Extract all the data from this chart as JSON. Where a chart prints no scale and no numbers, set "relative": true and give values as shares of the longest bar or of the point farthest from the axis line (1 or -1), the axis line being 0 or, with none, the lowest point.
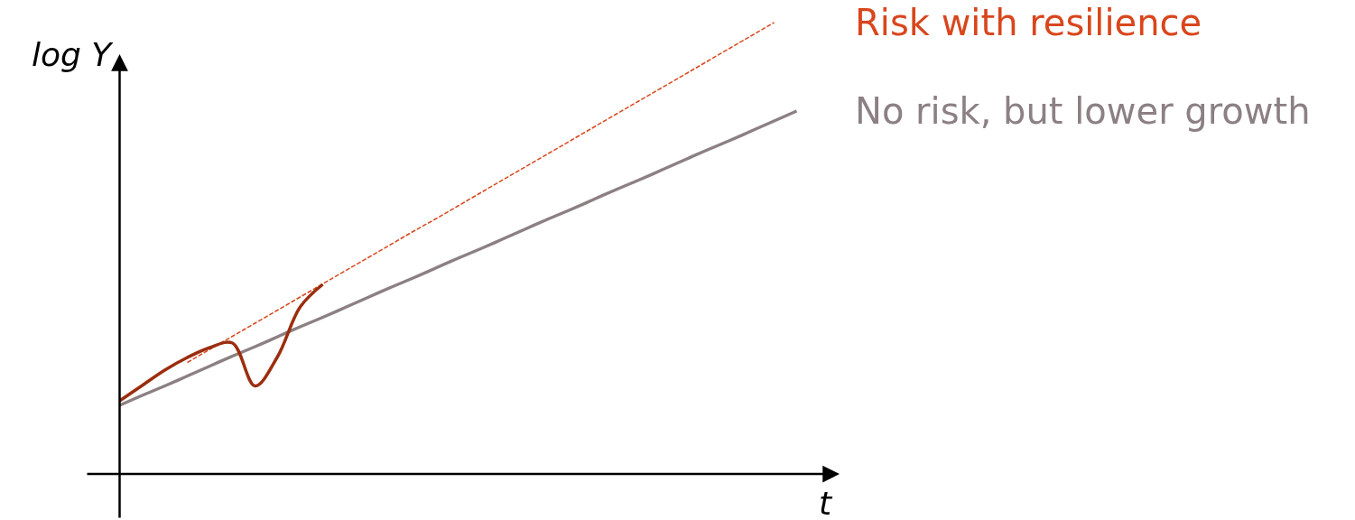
{
  "chart_data": {
    "type": "line",
    "xlabel": "t",
    "ylabel": "log Y",
    "relative": true,
    "legend": false,
    "marker": "none",
    "categories": [
      null,
      null,
      null,
      null,
      null,
      null,
      null,
      null,
      null,
      null,
      null,
      null,
      null,
      null,
      null,
      null,
      null,
      null,
      null,
      null,
      null,
      null,
      null,
      null,
      null,
      null,
      null,
      null,
      null,
      null,
      null
    ],
    "series": [
      {
        "name": "No risk, but lower growth",
        "color": "#8c8083",
        "line_style": "solid",
        "values": [
          0.152,
          0.174,
          0.195,
          0.217,
          0.239,
          0.261,
          0.282,
          0.304,
          0.326,
          0.347,
          0.369,
          0.391,
          0.413,
          0.434,
          0.456,
          0.478,
          0.499,
          0.521,
          0.543,
          0.565,
          0.586,
          0.608,
          0.63,
          0.651,
          0.673,
          0.695,
          0.717,
          0.738,
          0.76,
          0.782,
          0.804
        ]
      },
      {
        "name": "Risk with resilience",
        "color": "#d9461c",
        "line_style": "dashed",
        "values": [
          null,
          null,
          null,
          0.247,
          0.276,
          0.305,
          0.334,
          0.363,
          0.392,
          0.421,
          0.45,
          0.479,
          0.508,
          0.537,
          0.565,
          0.594,
          0.623,
          0.652,
          0.681,
          0.71,
          0.739,
          0.768,
          0.797,
          0.826,
          0.855,
          0.884,
          0.913,
          0.942,
          0.971,
          1.0,
          null
        ]
      },
      {
        "color": "#9b2d0e",
        "line_style": "solid",
        "values": [
          0.162,
          0.196,
          0.23,
          0.258,
          0.28,
          0.29,
          0.195,
          0.26,
          0.37,
          0.42,
          null,
          null,
          null,
          null,
          null,
          null,
          null,
          null,
          null,
          null,
          null,
          null,
          null,
          null,
          null,
          null,
          null,
          null,
          null,
          null,
          null
        ]
      }
    ]
  }
}
